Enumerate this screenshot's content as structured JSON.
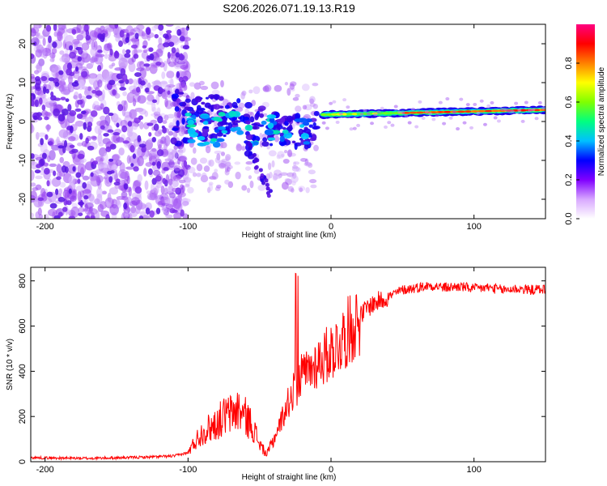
{
  "title": "S206.2026.071.19.13.R19",
  "chart_data": [
    {
      "type": "heatmap",
      "xlabel": "Height of straight line (km)",
      "ylabel": "Frequency (Hz)",
      "xlim": [
        -210,
        150
      ],
      "ylim": [
        -25,
        25
      ],
      "xticks": [
        -200,
        -100,
        0,
        100
      ],
      "yticks": [
        -20,
        -10,
        0,
        10,
        20
      ],
      "colorbar": {
        "label": "Normalized spectral amplitude",
        "range": [
          0,
          1
        ],
        "ticks": [
          0.0,
          0.2,
          0.4,
          0.6,
          0.8
        ],
        "tick_labels": [
          "0.0",
          "0.2",
          "0.4",
          "0.6",
          "0.8"
        ],
        "colors": [
          "#ffffff",
          "#d8a8ff",
          "#8000ff",
          "#0000ff",
          "#00c0ff",
          "#00ff80",
          "#80ff00",
          "#ffff00",
          "#ff8000",
          "#ff0000",
          "#ff0080"
        ]
      },
      "features": {
        "noise_region_x": [
          -210,
          -100
        ],
        "transition_region_x": [
          -110,
          -20
        ],
        "signal_line_x": [
          -5,
          150
        ],
        "signal_line_frequency_hz": [
          1,
          3
        ]
      }
    },
    {
      "type": "line",
      "xlabel": "Height of straight line (km)",
      "ylabel": "SNR (10 * v/v)",
      "xlim": [
        -210,
        150
      ],
      "ylim": [
        0,
        860
      ],
      "xticks": [
        -200,
        -100,
        0,
        100
      ],
      "yticks": [
        0,
        200,
        400,
        600,
        800
      ],
      "series": [
        {
          "name": "SNR",
          "color": "#ff0000",
          "x": [
            -210,
            -190,
            -170,
            -150,
            -130,
            -110,
            -100,
            -95,
            -90,
            -85,
            -80,
            -75,
            -70,
            -65,
            -60,
            -55,
            -50,
            -45,
            -40,
            -35,
            -30,
            -25,
            -20,
            -15,
            -10,
            -5,
            0,
            5,
            10,
            15,
            20,
            25,
            30,
            40,
            50,
            60,
            70,
            80,
            90,
            100,
            110,
            120,
            130,
            140,
            150
          ],
          "values": [
            18,
            16,
            15,
            17,
            20,
            25,
            40,
            90,
            130,
            150,
            170,
            200,
            210,
            230,
            200,
            160,
            80,
            30,
            100,
            180,
            260,
            330,
            380,
            400,
            440,
            460,
            490,
            520,
            560,
            600,
            640,
            680,
            700,
            730,
            760,
            770,
            780,
            770,
            775,
            765,
            770,
            760,
            765,
            760,
            765
          ]
        }
      ]
    }
  ]
}
